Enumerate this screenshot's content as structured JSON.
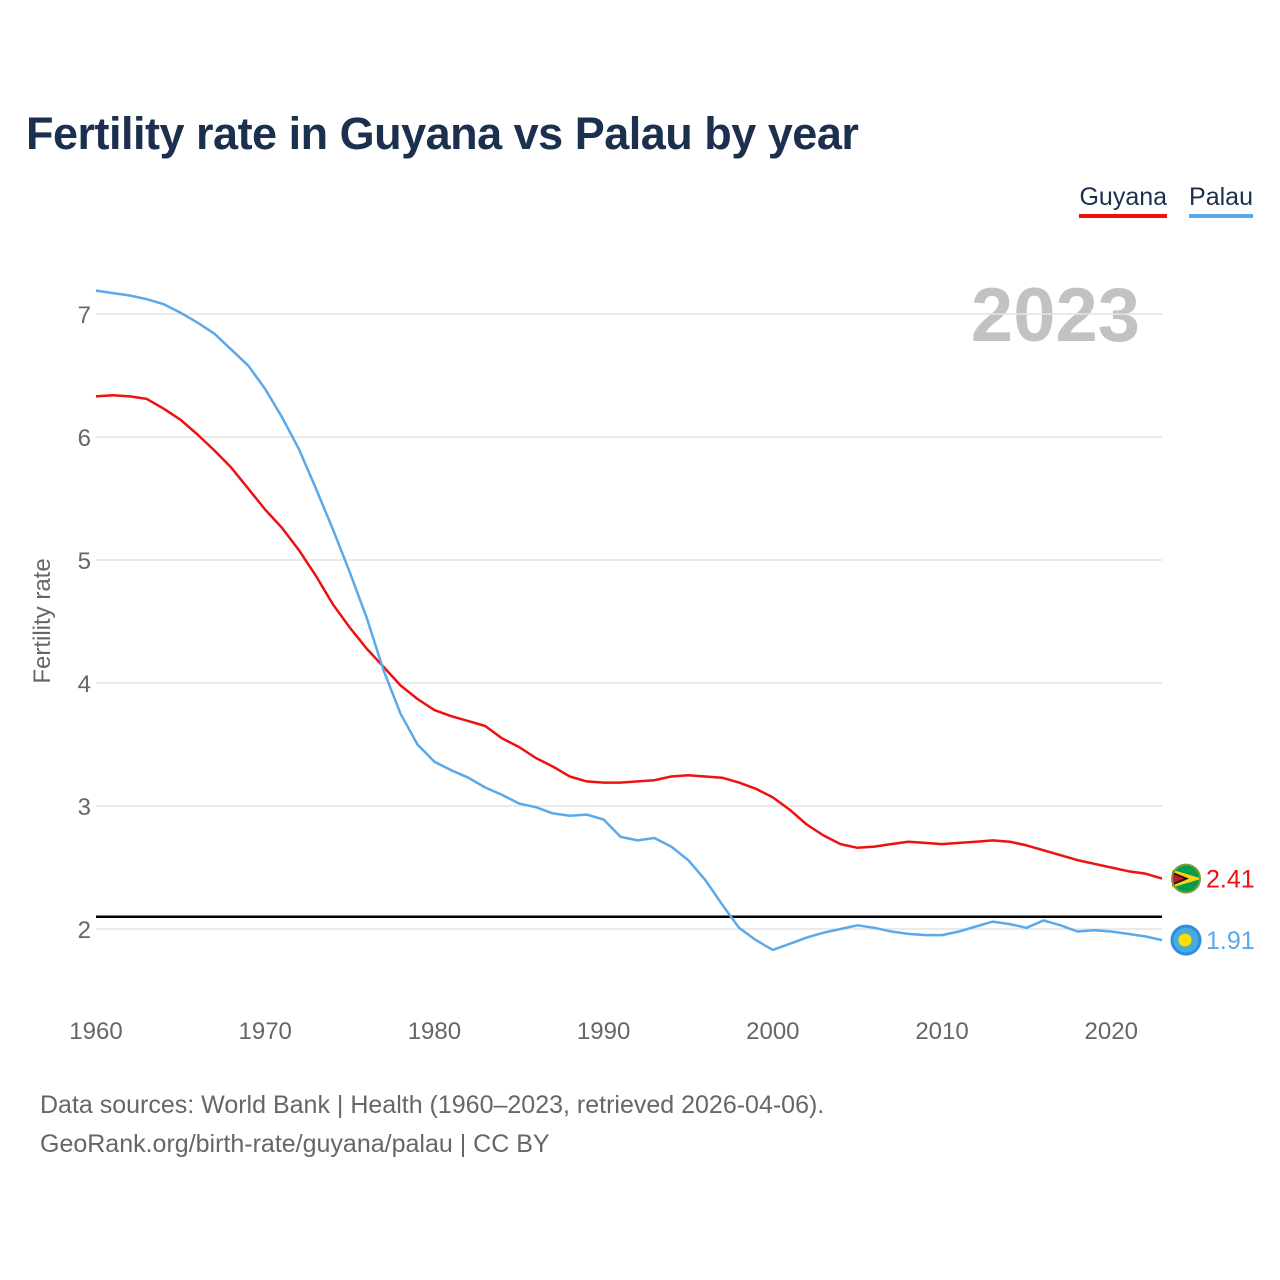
{
  "title": "Fertility rate in Guyana vs Palau by year",
  "legend": [
    {
      "label": "Guyana",
      "color": "#ee1111"
    },
    {
      "label": "Palau",
      "color": "#5aa9ea"
    }
  ],
  "year_watermark": "2023",
  "footer": {
    "line1": "Data sources: World Bank | Health (1960–2023, retrieved 2026-04-06).",
    "line2": "GeoRank.org/birth-rate/guyana/palau | CC BY"
  },
  "chart_data": {
    "type": "line",
    "title": "Fertility rate in Guyana vs Palau by year",
    "xlabel": "",
    "ylabel": "Fertility rate",
    "xlim": [
      1960,
      2023
    ],
    "ylim": [
      1.5,
      7.3
    ],
    "x_ticks": [
      1960,
      1970,
      1980,
      1990,
      2000,
      2010,
      2020
    ],
    "y_ticks": [
      2,
      3,
      4,
      5,
      6,
      7
    ],
    "grid": true,
    "reference_line": {
      "y": 2.1,
      "color": "#000000"
    },
    "x": [
      1960,
      1961,
      1962,
      1963,
      1964,
      1965,
      1966,
      1967,
      1968,
      1969,
      1970,
      1971,
      1972,
      1973,
      1974,
      1975,
      1976,
      1977,
      1978,
      1979,
      1980,
      1981,
      1982,
      1983,
      1984,
      1985,
      1986,
      1987,
      1988,
      1989,
      1990,
      1991,
      1992,
      1993,
      1994,
      1995,
      1996,
      1997,
      1998,
      1999,
      2000,
      2001,
      2002,
      2003,
      2004,
      2005,
      2006,
      2007,
      2008,
      2009,
      2010,
      2011,
      2012,
      2013,
      2014,
      2015,
      2016,
      2017,
      2018,
      2019,
      2020,
      2021,
      2022,
      2023
    ],
    "series": [
      {
        "name": "Guyana",
        "color": "#ee1111",
        "end_label": "2.41",
        "values": [
          6.33,
          6.34,
          6.33,
          6.31,
          6.23,
          6.14,
          6.02,
          5.89,
          5.75,
          5.58,
          5.41,
          5.26,
          5.08,
          4.87,
          4.64,
          4.45,
          4.28,
          4.13,
          3.98,
          3.87,
          3.78,
          3.73,
          3.69,
          3.65,
          3.55,
          3.48,
          3.39,
          3.32,
          3.24,
          3.2,
          3.19,
          3.19,
          3.2,
          3.21,
          3.24,
          3.25,
          3.24,
          3.23,
          3.19,
          3.14,
          3.07,
          2.97,
          2.85,
          2.76,
          2.69,
          2.66,
          2.67,
          2.69,
          2.71,
          2.7,
          2.69,
          2.7,
          2.71,
          2.72,
          2.71,
          2.68,
          2.64,
          2.6,
          2.56,
          2.53,
          2.5,
          2.47,
          2.45,
          2.41
        ]
      },
      {
        "name": "Palau",
        "color": "#5aa9ea",
        "end_label": "1.91",
        "values": [
          7.19,
          7.17,
          7.15,
          7.12,
          7.08,
          7.01,
          6.93,
          6.84,
          6.71,
          6.58,
          6.39,
          6.16,
          5.9,
          5.58,
          5.25,
          4.9,
          4.53,
          4.1,
          3.75,
          3.5,
          3.36,
          3.29,
          3.23,
          3.15,
          3.09,
          3.02,
          2.99,
          2.94,
          2.92,
          2.93,
          2.89,
          2.75,
          2.72,
          2.74,
          2.67,
          2.56,
          2.4,
          2.2,
          2.01,
          1.91,
          1.83,
          1.88,
          1.93,
          1.97,
          2.0,
          2.03,
          2.01,
          1.98,
          1.96,
          1.95,
          1.95,
          1.98,
          2.02,
          2.06,
          2.04,
          2.01,
          2.07,
          2.03,
          1.98,
          1.99,
          1.98,
          1.96,
          1.94,
          1.91
        ]
      }
    ]
  }
}
